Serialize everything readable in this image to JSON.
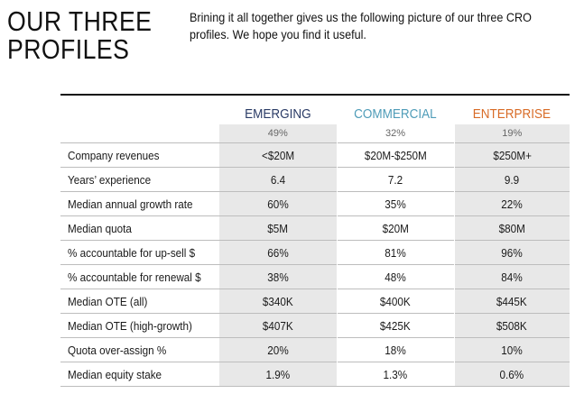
{
  "title": {
    "line1": "OUR THREE",
    "line2": "PROFILES"
  },
  "intro": {
    "line1": "Brining it all together gives us the following picture of our three CRO",
    "line2": "profiles. We hope you find it useful."
  },
  "colors": {
    "emerging": "#2a3b66",
    "commercial": "#4f9cb8",
    "enterprise": "#d86b26"
  },
  "table": {
    "headers": [
      "EMERGING",
      "COMMERCIAL",
      "ENTERPRISE"
    ],
    "shares": [
      "49%",
      "32%",
      "19%"
    ],
    "rows": [
      {
        "label": "Company revenues",
        "values": [
          "<$20M",
          "$20M-$250M",
          "$250M+"
        ]
      },
      {
        "label": "Years’ experience",
        "values": [
          "6.4",
          "7.2",
          "9.9"
        ]
      },
      {
        "label": "Median annual growth rate",
        "values": [
          "60%",
          "35%",
          "22%"
        ]
      },
      {
        "label": "Median quota",
        "values": [
          "$5M",
          "$20M",
          "$80M"
        ]
      },
      {
        "label": "% accountable for up-sell $",
        "values": [
          "66%",
          "81%",
          "96%"
        ]
      },
      {
        "label": "% accountable for renewal $",
        "values": [
          "38%",
          "48%",
          "84%"
        ]
      },
      {
        "label": "Median OTE (all)",
        "values": [
          "$340K",
          "$400K",
          "$445K"
        ]
      },
      {
        "label": "Median OTE (high-growth)",
        "values": [
          "$407K",
          "$425K",
          "$508K"
        ]
      },
      {
        "label": "Quota over-assign %",
        "values": [
          "20%",
          "18%",
          "10%"
        ]
      },
      {
        "label": "Median equity stake",
        "values": [
          "1.9%",
          "1.3%",
          "0.6%"
        ]
      }
    ]
  }
}
